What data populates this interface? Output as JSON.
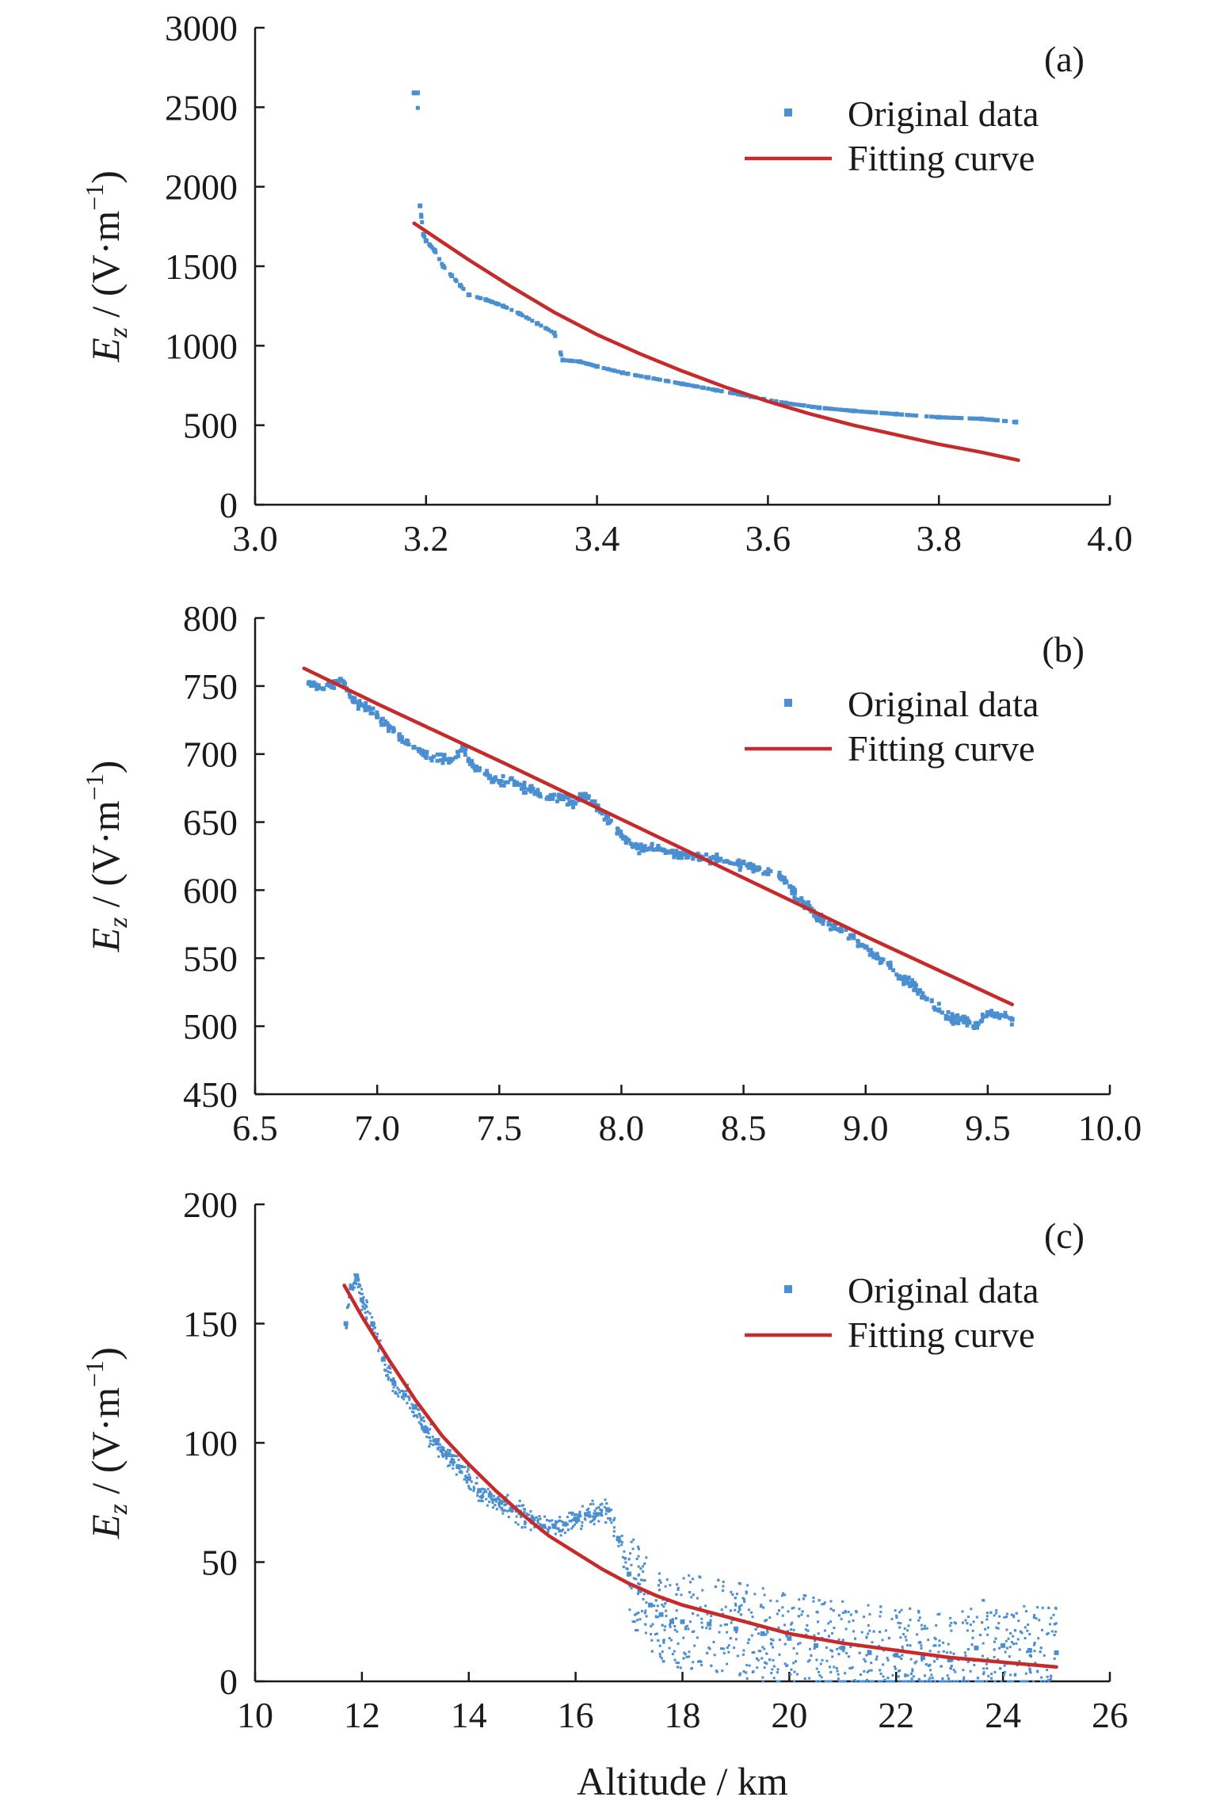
{
  "chart_data": [
    {
      "type": "scatter",
      "panel_label": "(a)",
      "ylabel_var": "E",
      "ylabel_sub": "z",
      "ylabel_unit": " / (V·m",
      "ylabel_exp": "−1",
      "ylabel_close": ")",
      "xlabel": "",
      "xlim": [
        3.0,
        4.0
      ],
      "ylim": [
        0,
        3000
      ],
      "x_ticks": [
        "3.0",
        "3.2",
        "3.4",
        "3.6",
        "3.8",
        "4.0"
      ],
      "y_ticks": [
        "0",
        "500",
        "1000",
        "1500",
        "2000",
        "2500",
        "3000"
      ],
      "legend": [
        "Original data",
        "Fitting curve"
      ],
      "legend_position": "top-right",
      "grid": false,
      "series": [
        {
          "name": "Original data",
          "kind": "scatter",
          "color": "#4a8fd1",
          "points": [
            [
              3.186,
              2590
            ],
            [
              3.19,
              2590
            ],
            [
              3.193,
              1880
            ],
            [
              3.197,
              1700
            ],
            [
              3.2,
              1660
            ],
            [
              3.21,
              1600
            ],
            [
              3.22,
              1500
            ],
            [
              3.23,
              1440
            ],
            [
              3.24,
              1380
            ],
            [
              3.25,
              1320
            ],
            [
              3.27,
              1290
            ],
            [
              3.29,
              1250
            ],
            [
              3.31,
              1200
            ],
            [
              3.33,
              1140
            ],
            [
              3.35,
              1080
            ],
            [
              3.36,
              910
            ],
            [
              3.38,
              900
            ],
            [
              3.4,
              870
            ],
            [
              3.43,
              830
            ],
            [
              3.46,
              800
            ],
            [
              3.5,
              760
            ],
            [
              3.54,
              720
            ],
            [
              3.58,
              680
            ],
            [
              3.62,
              640
            ],
            [
              3.66,
              610
            ],
            [
              3.7,
              590
            ],
            [
              3.75,
              570
            ],
            [
              3.8,
              550
            ],
            [
              3.85,
              540
            ],
            [
              3.89,
              520
            ]
          ]
        },
        {
          "name": "Fitting curve",
          "kind": "line",
          "color": "#c62a2a",
          "points": [
            [
              3.186,
              1770
            ],
            [
              3.25,
              1540
            ],
            [
              3.3,
              1370
            ],
            [
              3.35,
              1210
            ],
            [
              3.4,
              1070
            ],
            [
              3.45,
              950
            ],
            [
              3.5,
              840
            ],
            [
              3.55,
              740
            ],
            [
              3.6,
              650
            ],
            [
              3.65,
              570
            ],
            [
              3.7,
              500
            ],
            [
              3.75,
              440
            ],
            [
              3.8,
              380
            ],
            [
              3.85,
              330
            ],
            [
              3.893,
              280
            ]
          ]
        }
      ]
    },
    {
      "type": "scatter",
      "panel_label": "(b)",
      "ylabel_var": "E",
      "ylabel_sub": "z",
      "ylabel_unit": " / (V·m",
      "ylabel_exp": "−1",
      "ylabel_close": ")",
      "xlabel": "",
      "xlim": [
        6.5,
        10.0
      ],
      "ylim": [
        450,
        800
      ],
      "x_ticks": [
        "6.5",
        "7.0",
        "7.5",
        "8.0",
        "8.5",
        "9.0",
        "9.5",
        "10.0"
      ],
      "y_ticks": [
        "450",
        "500",
        "550",
        "600",
        "650",
        "700",
        "750",
        "800"
      ],
      "legend": [
        "Original data",
        "Fitting curve"
      ],
      "legend_position": "top-right",
      "grid": false,
      "series": [
        {
          "name": "Original data",
          "kind": "scatter",
          "color": "#4a8fd1",
          "points": [
            [
              6.72,
              752
            ],
            [
              6.78,
              748
            ],
            [
              6.85,
              755
            ],
            [
              6.9,
              740
            ],
            [
              6.95,
              735
            ],
            [
              7.0,
              728
            ],
            [
              7.05,
              720
            ],
            [
              7.1,
              712
            ],
            [
              7.15,
              705
            ],
            [
              7.2,
              700
            ],
            [
              7.3,
              695
            ],
            [
              7.35,
              705
            ],
            [
              7.4,
              690
            ],
            [
              7.45,
              685
            ],
            [
              7.5,
              680
            ],
            [
              7.55,
              682
            ],
            [
              7.6,
              676
            ],
            [
              7.65,
              672
            ],
            [
              7.7,
              668
            ],
            [
              7.75,
              668
            ],
            [
              7.8,
              665
            ],
            [
              7.85,
              670
            ],
            [
              7.9,
              662
            ],
            [
              7.95,
              650
            ],
            [
              8.0,
              640
            ],
            [
              8.05,
              632
            ],
            [
              8.1,
              630
            ],
            [
              8.15,
              630
            ],
            [
              8.2,
              628
            ],
            [
              8.3,
              625
            ],
            [
              8.4,
              622
            ],
            [
              8.5,
              620
            ],
            [
              8.55,
              615
            ],
            [
              8.6,
              612
            ],
            [
              8.65,
              610
            ],
            [
              8.7,
              600
            ],
            [
              8.75,
              590
            ],
            [
              8.8,
              580
            ],
            [
              8.85,
              575
            ],
            [
              8.9,
              570
            ],
            [
              8.95,
              565
            ],
            [
              9.0,
              558
            ],
            [
              9.05,
              550
            ],
            [
              9.1,
              545
            ],
            [
              9.15,
              535
            ],
            [
              9.2,
              530
            ],
            [
              9.25,
              520
            ],
            [
              9.3,
              512
            ],
            [
              9.35,
              505
            ],
            [
              9.4,
              505
            ],
            [
              9.45,
              500
            ],
            [
              9.5,
              510
            ],
            [
              9.55,
              508
            ],
            [
              9.6,
              505
            ]
          ]
        },
        {
          "name": "Fitting curve",
          "kind": "line",
          "color": "#c62a2a",
          "points": [
            [
              6.7,
              763
            ],
            [
              7.0,
              737
            ],
            [
              7.5,
              695
            ],
            [
              8.0,
              652
            ],
            [
              8.5,
              609
            ],
            [
              9.0,
              566
            ],
            [
              9.6,
              516
            ]
          ]
        }
      ]
    },
    {
      "type": "scatter",
      "panel_label": "(c)",
      "ylabel_var": "E",
      "ylabel_sub": "z",
      "ylabel_unit": " / (V·m",
      "ylabel_exp": "−1",
      "ylabel_close": ")",
      "xlabel": "Altitude / km",
      "xlim": [
        10,
        26
      ],
      "ylim": [
        0,
        200
      ],
      "x_ticks": [
        "10",
        "12",
        "14",
        "16",
        "18",
        "20",
        "22",
        "24",
        "26"
      ],
      "y_ticks": [
        "0",
        "50",
        "100",
        "150",
        "200"
      ],
      "legend": [
        "Original data",
        "Fitting curve"
      ],
      "legend_position": "top-right",
      "grid": false,
      "series": [
        {
          "name": "Original data",
          "kind": "scatter",
          "color": "#4a8fd1",
          "points": [
            [
              11.7,
              150
            ],
            [
              11.8,
              165
            ],
            [
              11.9,
              170
            ],
            [
              12.0,
              160
            ],
            [
              12.2,
              150
            ],
            [
              12.4,
              135
            ],
            [
              12.6,
              125
            ],
            [
              12.8,
              120
            ],
            [
              13.0,
              115
            ],
            [
              13.2,
              105
            ],
            [
              13.4,
              100
            ],
            [
              13.6,
              95
            ],
            [
              13.8,
              90
            ],
            [
              14.0,
              85
            ],
            [
              14.2,
              80
            ],
            [
              14.4,
              78
            ],
            [
              14.6,
              75
            ],
            [
              14.8,
              72
            ],
            [
              15.0,
              70
            ],
            [
              15.2,
              68
            ],
            [
              15.4,
              65
            ],
            [
              15.6,
              65
            ],
            [
              15.8,
              66
            ],
            [
              16.0,
              68
            ],
            [
              16.2,
              70
            ],
            [
              16.4,
              70
            ],
            [
              16.6,
              72
            ],
            [
              16.8,
              60
            ],
            [
              17.0,
              45
            ],
            [
              17.2,
              38
            ],
            [
              17.4,
              32
            ],
            [
              17.6,
              28
            ],
            [
              17.8,
              25
            ],
            [
              18.0,
              25
            ],
            [
              18.5,
              24
            ],
            [
              19.0,
              22
            ],
            [
              19.5,
              20
            ],
            [
              20.0,
              18
            ],
            [
              20.5,
              15
            ],
            [
              21.0,
              14
            ],
            [
              21.5,
              12
            ],
            [
              22.0,
              11
            ],
            [
              22.5,
              10
            ],
            [
              23.0,
              9
            ],
            [
              23.5,
              14
            ],
            [
              24.0,
              15
            ],
            [
              24.5,
              13
            ],
            [
              25.0,
              12
            ]
          ]
        },
        {
          "name": "Fitting curve",
          "kind": "line",
          "color": "#c62a2a",
          "points": [
            [
              11.67,
              166
            ],
            [
              12.0,
              153
            ],
            [
              12.5,
              135
            ],
            [
              13.0,
              118
            ],
            [
              13.5,
              103
            ],
            [
              14.0,
              91
            ],
            [
              14.5,
              80
            ],
            [
              15.0,
              70
            ],
            [
              15.5,
              61
            ],
            [
              16.0,
              54
            ],
            [
              16.5,
              47
            ],
            [
              17.0,
              41
            ],
            [
              17.5,
              36
            ],
            [
              18.0,
              32
            ],
            [
              19.0,
              26
            ],
            [
              20.0,
              20
            ],
            [
              21.0,
              16
            ],
            [
              22.0,
              13
            ],
            [
              23.0,
              10
            ],
            [
              24.0,
              8
            ],
            [
              25.0,
              6
            ]
          ]
        }
      ]
    }
  ]
}
